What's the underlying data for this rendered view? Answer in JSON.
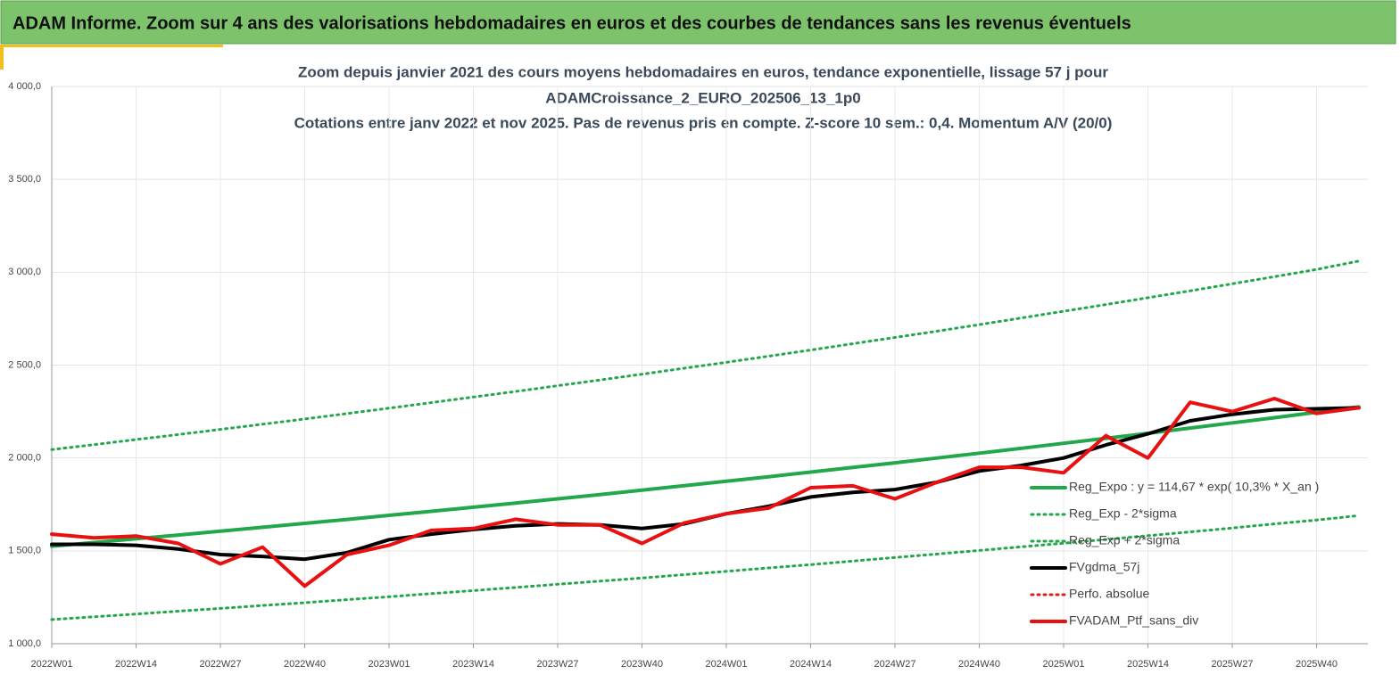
{
  "header": {
    "title": "ADAM Informe. Zoom sur 4 ans des valorisations hebdomadaires en euros et des courbes de tendances sans les revenus éventuels"
  },
  "chart_data": {
    "type": "line",
    "title": [
      "Zoom depuis janvier 2021 des cours moyens hebdomadaires  en euros, tendance exponentielle, lissage 57 j pour",
      "ADAMCroissance_2_EURO_202506_13_1p0",
      "Cotations  entre janv 2022 et nov 2025. Pas de revenus pris en compte. Z-score 10 sem.: 0,4. Momentum  A/V (20/0)"
    ],
    "categories": [
      "2022W01",
      null,
      "2022W14",
      null,
      "2022W27",
      null,
      "2022W40",
      null,
      "2023W01",
      null,
      "2023W14",
      null,
      "2023W27",
      null,
      "2023W40",
      null,
      "2024W01",
      null,
      "2024W14",
      null,
      "2024W27",
      null,
      "2024W40",
      null,
      "2025W01",
      null,
      "2025W14",
      null,
      "2025W27",
      null,
      "2025W40",
      null
    ],
    "ylim": [
      1000,
      4000
    ],
    "yticks": [
      {
        "value": 1000,
        "label": "1 000,0"
      },
      {
        "value": 1500,
        "label": "1 500,0"
      },
      {
        "value": 2000,
        "label": "2 000,0"
      },
      {
        "value": 2500,
        "label": "2 500,0"
      },
      {
        "value": 3000,
        "label": "3 000,0"
      },
      {
        "value": 3500,
        "label": "3 500,0"
      },
      {
        "value": 4000,
        "label": "4 000,0"
      }
    ],
    "grid": true,
    "series": [
      {
        "name": "Reg_Expo : y = 114,67 * exp( 10,3% *  X_an )",
        "color": "#22a84a",
        "dash": "solid",
        "values": [
          1525,
          1545,
          1565,
          1585,
          1606,
          1627,
          1648,
          1669,
          1691,
          1713,
          1735,
          1757,
          1780,
          1803,
          1827,
          1851,
          1875,
          1899,
          1924,
          1949,
          1974,
          2000,
          2026,
          2052,
          2079,
          2106,
          2133,
          2161,
          2189,
          2217,
          2246,
          2275
        ]
      },
      {
        "name": "Reg_Exp - 2*sigma",
        "color": "#22a84a",
        "dash": "dotted",
        "values": [
          1130,
          1145,
          1160,
          1175,
          1190,
          1206,
          1221,
          1237,
          1253,
          1270,
          1286,
          1303,
          1320,
          1337,
          1354,
          1372,
          1390,
          1408,
          1426,
          1445,
          1464,
          1483,
          1502,
          1522,
          1541,
          1561,
          1582,
          1602,
          1623,
          1645,
          1666,
          1690
        ]
      },
      {
        "name": "Reg_Exp + 2*sigma",
        "color": "#22a84a",
        "dash": "dotted",
        "values": [
          2045,
          2072,
          2099,
          2126,
          2154,
          2182,
          2210,
          2239,
          2268,
          2298,
          2328,
          2358,
          2389,
          2420,
          2451,
          2483,
          2515,
          2548,
          2581,
          2615,
          2649,
          2683,
          2718,
          2754,
          2790,
          2826,
          2863,
          2900,
          2938,
          2976,
          3015,
          3060
        ]
      },
      {
        "name": "FVgdma_57j",
        "color": "#000000",
        "dash": "solid",
        "values": [
          1535,
          1535,
          1530,
          1510,
          1480,
          1470,
          1455,
          1490,
          1560,
          1590,
          1615,
          1635,
          1645,
          1640,
          1620,
          1645,
          1700,
          1740,
          1790,
          1815,
          1830,
          1870,
          1930,
          1960,
          2000,
          2070,
          2130,
          2200,
          2235,
          2260,
          2265,
          2270
        ]
      },
      {
        "name": "Perfo. absolue",
        "color": "#d42020",
        "dash": "dotted",
        "values": [
          null,
          null,
          null,
          null,
          null,
          null,
          null,
          null,
          null,
          null,
          null,
          null,
          null,
          null,
          null,
          null,
          null,
          null,
          null,
          null,
          null,
          null,
          null,
          null,
          null,
          null,
          null,
          null,
          null,
          null,
          null,
          null
        ]
      },
      {
        "name": "FVADAM_Ptf_sans_div",
        "color": "#e81010",
        "dash": "solid",
        "values": [
          1590,
          1570,
          1580,
          1540,
          1430,
          1520,
          1310,
          1480,
          1530,
          1610,
          1620,
          1670,
          1640,
          1640,
          1540,
          1650,
          1700,
          1730,
          1840,
          1850,
          1780,
          1870,
          1950,
          1950,
          1920,
          2120,
          2000,
          2300,
          2250,
          2320,
          2240,
          2270
        ]
      }
    ]
  }
}
